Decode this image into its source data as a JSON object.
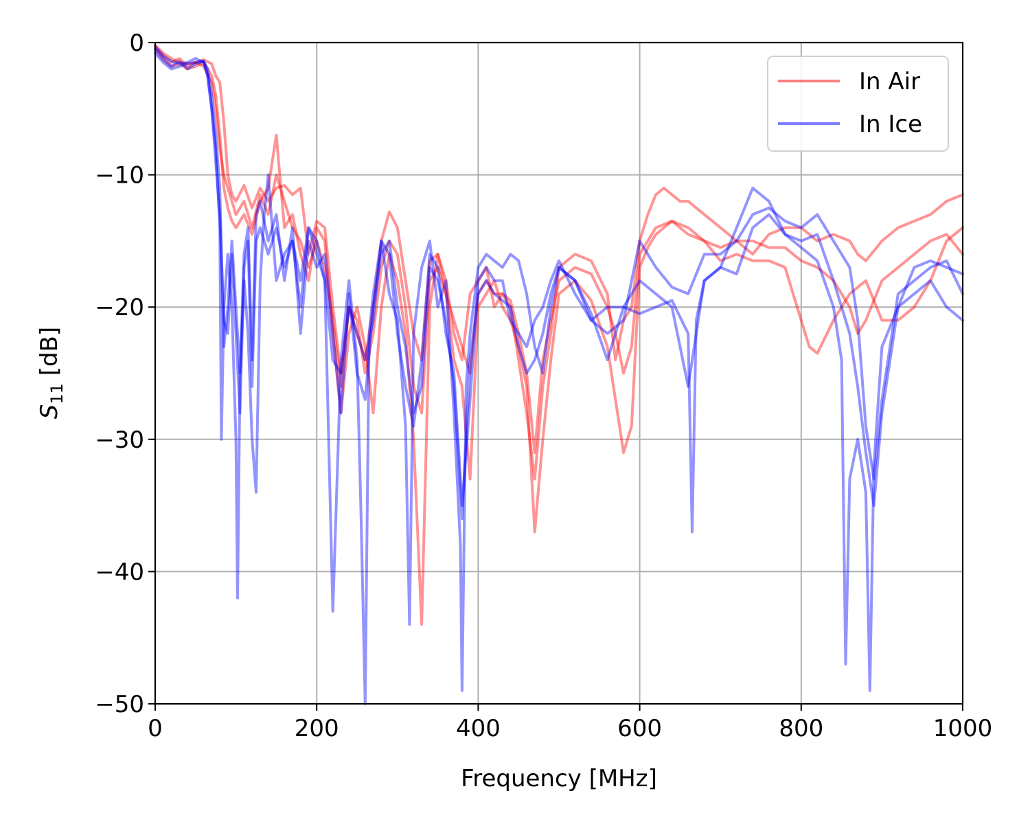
{
  "chart_data": {
    "type": "line",
    "xlabel": "Frequency [MHz]",
    "ylabel_main": "S",
    "ylabel_sub": "11",
    "ylabel_unit": " [dB]",
    "xlim": [
      0,
      1000
    ],
    "ylim": [
      -50,
      0
    ],
    "xticks": [
      0,
      200,
      400,
      600,
      800,
      1000
    ],
    "yticks": [
      0,
      -10,
      -20,
      -30,
      -40,
      -50
    ],
    "xtick_labels": [
      "0",
      "200",
      "400",
      "600",
      "800",
      "1000"
    ],
    "ytick_labels": [
      "0",
      "−10",
      "−20",
      "−30",
      "−40",
      "−50"
    ],
    "grid": true,
    "legend_position": "top-right",
    "legend": [
      {
        "label": "In Air",
        "color": "#ff0000"
      },
      {
        "label": "In Ice",
        "color": "#0000ff"
      }
    ],
    "series": [
      {
        "group": "In Air",
        "color": "#ff0000",
        "x": [
          0,
          10,
          20,
          30,
          40,
          50,
          60,
          70,
          75,
          80,
          85,
          90,
          95,
          100,
          110,
          120,
          130,
          140,
          150,
          160,
          170,
          180,
          190,
          200,
          210,
          220,
          230,
          240,
          250,
          260,
          270,
          280,
          290,
          300,
          310,
          320,
          330,
          340,
          350,
          360,
          370,
          380,
          390,
          400,
          410,
          420,
          430,
          440,
          450,
          460,
          470,
          480,
          490,
          500,
          520,
          540,
          560,
          570,
          580,
          590,
          600,
          610,
          620,
          630,
          640,
          650,
          660,
          680,
          700,
          720,
          740,
          760,
          780,
          800,
          810,
          820,
          840,
          860,
          870,
          880,
          900,
          920,
          940,
          960,
          980,
          1000
        ],
        "y": [
          -0.3,
          -1,
          -1.5,
          -1.2,
          -1.8,
          -1.5,
          -1.3,
          -1.6,
          -2.5,
          -3,
          -6,
          -10,
          -11.5,
          -12,
          -10.8,
          -12.5,
          -11,
          -12,
          -11,
          -10.8,
          -11.5,
          -11,
          -16,
          -13.5,
          -14,
          -20,
          -25,
          -20,
          -22,
          -24,
          -20,
          -15,
          -12.8,
          -14,
          -18,
          -22,
          -24,
          -16.5,
          -16,
          -18,
          -22,
          -24,
          -19,
          -18,
          -17,
          -20,
          -19,
          -20,
          -24,
          -28,
          -33,
          -26,
          -22,
          -17,
          -16,
          -16.5,
          -19,
          -24,
          -21,
          -20,
          -15,
          -13,
          -11.5,
          -11,
          -11.5,
          -12,
          -12,
          -13,
          -14,
          -15,
          -16,
          -14.5,
          -14,
          -14,
          -14.5,
          -15,
          -14.5,
          -15,
          -16,
          -16.5,
          -15,
          -14,
          -13.5,
          -13,
          -12,
          -11.5
        ]
      },
      {
        "group": "In Air",
        "color": "#ff0000",
        "x": [
          0,
          10,
          20,
          30,
          40,
          50,
          60,
          70,
          75,
          80,
          85,
          90,
          95,
          100,
          110,
          120,
          130,
          140,
          150,
          160,
          170,
          180,
          190,
          200,
          210,
          220,
          230,
          240,
          250,
          260,
          270,
          280,
          290,
          300,
          310,
          320,
          330,
          340,
          350,
          360,
          370,
          380,
          390,
          400,
          410,
          420,
          430,
          440,
          450,
          460,
          470,
          480,
          490,
          500,
          520,
          540,
          560,
          570,
          580,
          590,
          600,
          610,
          620,
          640,
          660,
          680,
          700,
          720,
          740,
          760,
          780,
          800,
          810,
          820,
          840,
          860,
          880,
          900,
          920,
          940,
          960,
          980,
          1000
        ],
        "y": [
          -0.5,
          -1.3,
          -1.8,
          -1.6,
          -2,
          -1.8,
          -1.5,
          -2.5,
          -4,
          -7,
          -11,
          -12.5,
          -13.5,
          -14,
          -13,
          -14.5,
          -12,
          -11,
          -7,
          -14,
          -13,
          -16,
          -18,
          -14,
          -15,
          -22,
          -28,
          -22,
          -20,
          -23,
          -28,
          -20,
          -16,
          -18,
          -22,
          -30,
          -44,
          -20,
          -16,
          -19,
          -24,
          -26,
          -33,
          -20,
          -19,
          -18,
          -20,
          -21,
          -23,
          -26,
          -37,
          -30,
          -24,
          -19,
          -18,
          -19.5,
          -23,
          -27,
          -31,
          -29,
          -17,
          -15.5,
          -14.5,
          -13.5,
          -14,
          -15,
          -16.5,
          -16,
          -16.5,
          -16.5,
          -17,
          -21,
          -23,
          -23.5,
          -21,
          -19,
          -18,
          -21,
          -21,
          -20,
          -18,
          -15,
          -14
        ]
      },
      {
        "group": "In Air",
        "color": "#ff0000",
        "x": [
          0,
          10,
          20,
          30,
          40,
          50,
          60,
          70,
          75,
          80,
          85,
          90,
          95,
          100,
          110,
          120,
          130,
          140,
          150,
          160,
          170,
          180,
          190,
          200,
          210,
          220,
          230,
          240,
          250,
          260,
          270,
          280,
          290,
          300,
          310,
          320,
          330,
          340,
          350,
          360,
          370,
          380,
          390,
          400,
          410,
          420,
          430,
          440,
          450,
          460,
          470,
          480,
          490,
          500,
          520,
          540,
          560,
          570,
          580,
          590,
          600,
          620,
          640,
          660,
          680,
          700,
          720,
          740,
          760,
          780,
          800,
          820,
          840,
          860,
          870,
          880,
          900,
          920,
          940,
          960,
          980,
          1000
        ],
        "y": [
          -0.2,
          -0.8,
          -1.2,
          -1.5,
          -1.6,
          -1.5,
          -1.8,
          -3,
          -5,
          -8,
          -10,
          -11,
          -12,
          -13,
          -12,
          -14,
          -11.5,
          -13,
          -10,
          -12,
          -14,
          -15,
          -17,
          -15,
          -17,
          -21,
          -26,
          -20,
          -21,
          -25,
          -22,
          -17,
          -15,
          -16,
          -20,
          -26,
          -28,
          -18,
          -17,
          -19,
          -21,
          -23,
          -25,
          -19,
          -18,
          -19,
          -19,
          -19.5,
          -22,
          -25,
          -31,
          -24,
          -21,
          -18,
          -17,
          -17.5,
          -20,
          -22,
          -25,
          -23,
          -16,
          -14,
          -13.5,
          -14.5,
          -15,
          -15.5,
          -15,
          -15,
          -15.5,
          -15.5,
          -16.5,
          -17,
          -18,
          -20,
          -22,
          -21,
          -18,
          -17,
          -16,
          -15,
          -14.5,
          -16
        ]
      },
      {
        "group": "In Ice",
        "color": "#0000ff",
        "x": [
          0,
          10,
          20,
          30,
          40,
          50,
          60,
          65,
          70,
          75,
          80,
          82,
          85,
          90,
          95,
          100,
          102,
          105,
          110,
          115,
          120,
          125,
          130,
          135,
          140,
          150,
          160,
          170,
          180,
          190,
          200,
          210,
          220,
          230,
          240,
          250,
          255,
          260,
          265,
          270,
          280,
          290,
          300,
          310,
          315,
          320,
          330,
          340,
          350,
          360,
          370,
          378,
          380,
          385,
          390,
          400,
          410,
          420,
          430,
          440,
          450,
          460,
          470,
          480,
          490,
          500,
          520,
          540,
          560,
          580,
          600,
          620,
          640,
          660,
          665,
          670,
          680,
          700,
          720,
          740,
          760,
          780,
          800,
          820,
          840,
          850,
          855,
          860,
          870,
          880,
          885,
          890,
          900,
          920,
          940,
          960,
          980,
          1000
        ],
        "y": [
          -0.5,
          -1.2,
          -1.8,
          -1.4,
          -2,
          -1.6,
          -1.4,
          -2.5,
          -5,
          -8,
          -14,
          -30,
          -20,
          -16,
          -20,
          -30,
          -42,
          -25,
          -18,
          -22,
          -30,
          -34,
          -18,
          -13,
          -10,
          -18,
          -16,
          -15,
          -18,
          -14,
          -16,
          -18,
          -43,
          -24,
          -18,
          -24,
          -36,
          -50,
          -22,
          -19,
          -15,
          -19,
          -21,
          -29,
          -44,
          -22,
          -17,
          -15,
          -20,
          -18,
          -28,
          -38,
          -49,
          -26,
          -22,
          -17,
          -16,
          -16.5,
          -17,
          -16,
          -16.5,
          -19,
          -23,
          -25,
          -20,
          -17,
          -18,
          -21,
          -20,
          -20,
          -20.5,
          -20,
          -19.5,
          -22,
          -37,
          -21,
          -18,
          -17,
          -17.5,
          -14,
          -13,
          -14.5,
          -15.5,
          -16.5,
          -20,
          -24,
          -47,
          -33,
          -30,
          -34,
          -49,
          -32,
          -23,
          -20,
          -19,
          -18,
          -20,
          -21
        ]
      },
      {
        "group": "In Ice",
        "color": "#0000ff",
        "x": [
          0,
          10,
          20,
          30,
          40,
          50,
          60,
          65,
          70,
          75,
          80,
          85,
          90,
          95,
          100,
          105,
          110,
          115,
          120,
          125,
          130,
          140,
          150,
          160,
          170,
          180,
          190,
          200,
          210,
          220,
          230,
          240,
          250,
          260,
          270,
          280,
          290,
          300,
          310,
          320,
          330,
          340,
          350,
          360,
          370,
          380,
          390,
          400,
          410,
          420,
          430,
          440,
          450,
          460,
          470,
          480,
          490,
          500,
          520,
          540,
          560,
          580,
          600,
          620,
          640,
          660,
          680,
          700,
          720,
          740,
          760,
          780,
          800,
          820,
          840,
          860,
          870,
          880,
          890,
          900,
          920,
          940,
          960,
          980,
          1000
        ],
        "y": [
          -0.8,
          -1.5,
          -2,
          -1.8,
          -1.6,
          -1.5,
          -1.4,
          -2,
          -4,
          -7,
          -11,
          -23,
          -20,
          -15,
          -20,
          -25,
          -16,
          -14,
          -24,
          -13,
          -12,
          -15,
          -13,
          -18,
          -14,
          -22,
          -15,
          -17,
          -16,
          -22,
          -28,
          -19,
          -25,
          -27,
          -20,
          -16,
          -15,
          -20,
          -23,
          -28,
          -26,
          -17,
          -18,
          -21,
          -26,
          -36,
          -24,
          -19,
          -18,
          -19,
          -19.5,
          -20,
          -23,
          -25,
          -24,
          -22,
          -19,
          -17,
          -18,
          -20.5,
          -24,
          -20,
          -18,
          -19,
          -20,
          -26,
          -18,
          -17,
          -14,
          -11,
          -12,
          -14.5,
          -15,
          -14.5,
          -18,
          -22,
          -26,
          -31,
          -35,
          -28,
          -20,
          -17,
          -16.5,
          -17,
          -17.5
        ]
      },
      {
        "group": "In Ice",
        "color": "#0000ff",
        "x": [
          0,
          10,
          20,
          30,
          40,
          50,
          60,
          65,
          70,
          75,
          80,
          85,
          90,
          95,
          100,
          105,
          110,
          115,
          120,
          125,
          130,
          140,
          150,
          160,
          170,
          180,
          190,
          200,
          210,
          220,
          230,
          240,
          250,
          260,
          270,
          280,
          290,
          300,
          310,
          320,
          330,
          340,
          350,
          360,
          370,
          380,
          390,
          400,
          410,
          420,
          430,
          440,
          450,
          460,
          470,
          480,
          490,
          500,
          520,
          540,
          560,
          580,
          600,
          620,
          640,
          660,
          680,
          700,
          720,
          740,
          760,
          780,
          800,
          820,
          840,
          860,
          870,
          880,
          890,
          900,
          920,
          940,
          960,
          980,
          1000
        ],
        "y": [
          -0.3,
          -1,
          -1.4,
          -1.6,
          -1.5,
          -1.2,
          -1.5,
          -2.5,
          -5,
          -9,
          -13,
          -21,
          -22,
          -16,
          -22,
          -28,
          -17,
          -15,
          -26,
          -15,
          -14,
          -16,
          -14,
          -17,
          -15,
          -20,
          -14,
          -15,
          -18,
          -24,
          -25,
          -20,
          -22,
          -24,
          -21,
          -15,
          -16,
          -22,
          -26,
          -29,
          -24,
          -16,
          -17,
          -22,
          -25,
          -35,
          -27,
          -18,
          -17,
          -18,
          -18,
          -21,
          -22,
          -23,
          -21,
          -20,
          -18,
          -16.5,
          -19,
          -21,
          -22,
          -21,
          -15,
          -17,
          -18.5,
          -19,
          -16,
          -16,
          -15,
          -13,
          -12.5,
          -13.5,
          -14,
          -13,
          -15,
          -17,
          -21,
          -29,
          -33,
          -27,
          -19,
          -18,
          -17,
          -16.5,
          -19
        ]
      }
    ]
  }
}
